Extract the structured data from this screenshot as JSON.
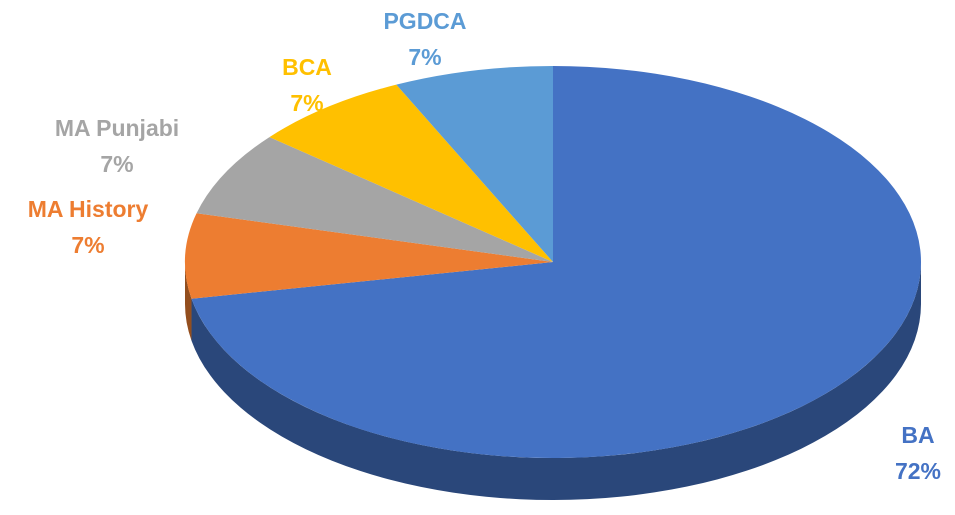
{
  "chart_data": {
    "type": "pie",
    "categories": [
      "BA",
      "MA History",
      "MA Punjabi",
      "BCA",
      "PGDCA"
    ],
    "values": [
      72,
      7,
      7,
      7,
      7
    ],
    "value_labels": [
      "72%",
      "7%",
      "7%",
      "7%",
      "7%"
    ],
    "colors": [
      "#4472c4",
      "#ed7d31",
      "#a5a5a5",
      "#ffc000",
      "#5b9bd5"
    ]
  }
}
